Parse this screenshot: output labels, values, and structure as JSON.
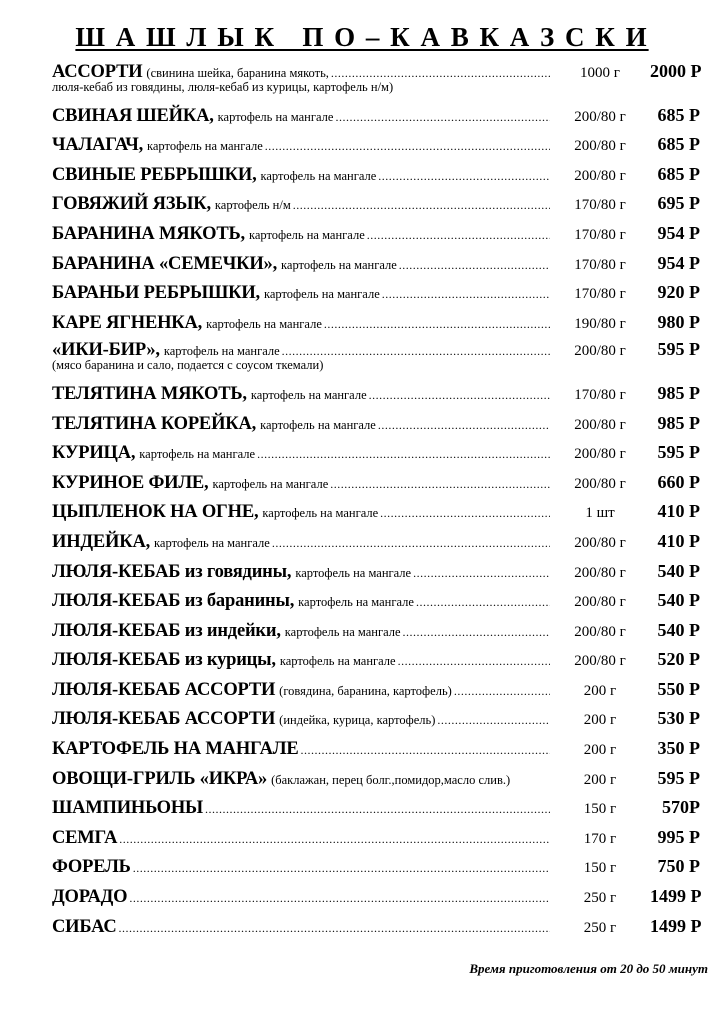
{
  "title": "Ш А Ш Л Ы К   П О – К А В К А З С К И",
  "items": [
    {
      "name": "АССОРТИ",
      "desc": "(свинина шейка, баранина мякоть,",
      "sub": "люля-кебаб из говядины,  люля-кебаб из курицы, картофель н/м)",
      "weight": "1000 г",
      "price": "2000 Р"
    },
    {
      "name": "СВИНАЯ ШЕЙКА,",
      "desc": "картофель на мангале",
      "weight": "200/80 г",
      "price": "685 Р"
    },
    {
      "name": "ЧАЛАГАЧ,",
      "desc": "картофель на мангале",
      "weight": "200/80 г",
      "price": "685 Р"
    },
    {
      "name": "СВИНЫЕ РЕБРЫШКИ,",
      "desc": "картофель на мангале",
      "weight": "200/80 г",
      "price": "685 Р"
    },
    {
      "name": "ГОВЯЖИЙ ЯЗЫК,",
      "desc": "картофель н/м",
      "weight": "170/80 г",
      "price": "695 Р"
    },
    {
      "name": "БАРАНИНА МЯКОТЬ,",
      "desc": "картофель на мангале",
      "weight": "170/80 г",
      "price": "954 Р"
    },
    {
      "name": "БАРАНИНА «СЕМЕЧКИ»,",
      "desc": "картофель на мангале",
      "weight": "170/80 г",
      "price": "954 Р"
    },
    {
      "name": "БАРАНЬИ РЕБРЫШКИ,",
      "desc": "картофель на мангале",
      "weight": "170/80 г",
      "price": "920 Р"
    },
    {
      "name": "КАРЕ ЯГНЕНКА,",
      "desc": "картофель на мангале",
      "weight": "190/80 г",
      "price": "980 Р"
    },
    {
      "name": "«ИКИ-БИР»,",
      "desc": "картофель на мангале",
      "sub": "(мясо баранина и сало, подается с соусом ткемали)",
      "weight": "200/80 г",
      "price": "595 Р"
    },
    {
      "name": "ТЕЛЯТИНА МЯКОТЬ,",
      "desc": "картофель на мангале",
      "weight": "170/80 г",
      "price": "985 Р"
    },
    {
      "name": "ТЕЛЯТИНА КОРЕЙКА,",
      "desc": "картофель на мангале",
      "weight": "200/80 г",
      "price": "985 Р"
    },
    {
      "name": "КУРИЦА,",
      "desc": "картофель на мангале",
      "weight": "200/80 г",
      "price": "595 Р"
    },
    {
      "name": "КУРИНОЕ ФИЛЕ,",
      "desc": "картофель на мангале",
      "weight": "200/80 г",
      "price": "660 Р"
    },
    {
      "name": "ЦЫПЛЕНОК НА ОГНЕ,",
      "desc": "картофель на мангале",
      "weight": "1 шт",
      "price": "410 Р"
    },
    {
      "name": "ИНДЕЙКА,",
      "desc": "картофель на мангале",
      "weight": "200/80 г",
      "price": "410 Р"
    },
    {
      "name": "ЛЮЛЯ-КЕБАБ из говядины,",
      "desc": "картофель на мангале",
      "weight": "200/80 г",
      "price": "540 Р"
    },
    {
      "name": "ЛЮЛЯ-КЕБАБ из баранины,",
      "desc": "картофель на мангале",
      "weight": "200/80 г",
      "price": "540 Р"
    },
    {
      "name": "ЛЮЛЯ-КЕБАБ из индейки,",
      "desc": "картофель на мангале",
      "weight": "200/80 г",
      "price": "540 Р"
    },
    {
      "name": "ЛЮЛЯ-КЕБАБ из курицы,",
      "desc": "картофель на мангале",
      "weight": "200/80 г",
      "price": "520 Р"
    },
    {
      "name": "ЛЮЛЯ-КЕБАБ АССОРТИ",
      "desc": "(говядина, баранина, картофель)",
      "weight": "200 г",
      "price": "550 Р"
    },
    {
      "name": "ЛЮЛЯ-КЕБАБ АССОРТИ",
      "desc": "(индейка, курица, картофель)",
      "weight": "200 г",
      "price": "530 Р"
    },
    {
      "name": "КАРТОФЕЛЬ НА МАНГАЛЕ",
      "desc": "",
      "weight": "200 г",
      "price": "350 Р"
    },
    {
      "name": "ОВОЩИ-ГРИЛЬ «ИКРА»",
      "desc": "(баклажан, перец болг.,помидор,масло слив.)",
      "weight": "200 г",
      "price": "595 Р",
      "noleader": true
    },
    {
      "name": "ШАМПИНЬОНЫ",
      "desc": "",
      "weight": "150 г",
      "price": "570Р"
    },
    {
      "name": "СЕМГА",
      "desc": "",
      "weight": "170 г",
      "price": "995 Р"
    },
    {
      "name": "ФОРЕЛЬ",
      "desc": "",
      "weight": "150 г",
      "price": "750 Р"
    },
    {
      "name": "ДОРАДО",
      "desc": "",
      "weight": "250 г",
      "price": "1499 Р"
    },
    {
      "name": "СИБАС",
      "desc": "",
      "weight": "250 г",
      "price": "1499 Р"
    }
  ],
  "footer": "Время приготовления от 20 до 50 минут"
}
